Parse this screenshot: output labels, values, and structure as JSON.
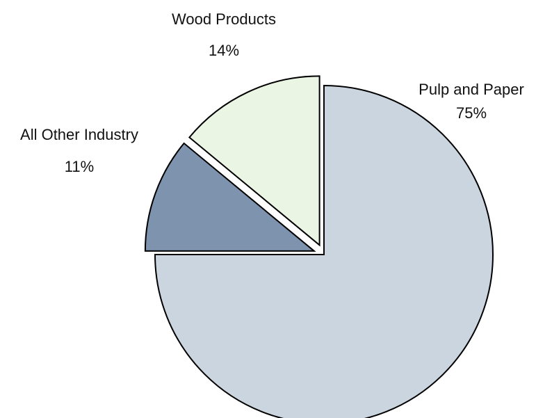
{
  "chart_data": {
    "type": "pie",
    "title": "",
    "slices": [
      {
        "label": "Pulp and Paper",
        "value": 75,
        "value_label": "75%",
        "color": "#cbd5e0",
        "exploded": false
      },
      {
        "label": "All Other Industry",
        "value": 11,
        "value_label": "11%",
        "color": "#7d93ae",
        "exploded": true
      },
      {
        "label": "Wood Products",
        "value": 14,
        "value_label": "14%",
        "color": "#ebf5e4",
        "exploded": true
      }
    ],
    "start_angle_deg": 0,
    "direction": "clockwise",
    "legend": "none",
    "slice_outline_color": "#000000"
  }
}
